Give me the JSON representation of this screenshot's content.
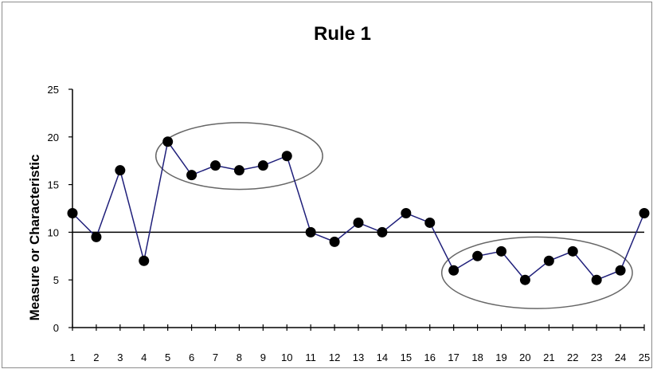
{
  "chart_data": {
    "type": "line",
    "title": "Rule 1",
    "xlabel": "",
    "ylabel": "Measure or Characteristic",
    "x": [
      1,
      2,
      3,
      4,
      5,
      6,
      7,
      8,
      9,
      10,
      11,
      12,
      13,
      14,
      15,
      16,
      17,
      18,
      19,
      20,
      21,
      22,
      23,
      24,
      25
    ],
    "x_tick_labels": [
      "1",
      "2",
      "3",
      "4",
      "5",
      "6",
      "7",
      "8",
      "9",
      "10",
      "11",
      "12",
      "13",
      "14",
      "15",
      "16",
      "17",
      "18",
      "19",
      "20",
      "21",
      "22",
      "23",
      "24",
      "25"
    ],
    "y_tick_labels": [
      "0",
      "5",
      "10",
      "15",
      "20",
      "25"
    ],
    "ylim": [
      0,
      25
    ],
    "xlim": [
      1,
      25
    ],
    "series": [
      {
        "values": [
          12,
          9.5,
          16.5,
          7,
          19.5,
          16,
          17,
          16.5,
          17,
          18,
          10,
          9,
          11,
          10,
          12,
          11,
          6,
          7.5,
          8,
          5,
          7,
          8,
          5,
          6,
          12
        ]
      }
    ],
    "reference_line": {
      "y": 10
    },
    "highlight_ellipses": [
      {
        "x_from": 4.5,
        "x_to": 11.5,
        "y_from": 14.5,
        "y_to": 21.5
      },
      {
        "x_from": 16.5,
        "x_to": 24.5,
        "y_from": 2,
        "y_to": 9.5
      }
    ],
    "grid": false,
    "colors": {
      "line": "#1f1f7a",
      "marker": "#000000",
      "axis": "#000000",
      "ellipse": "#666666"
    }
  }
}
